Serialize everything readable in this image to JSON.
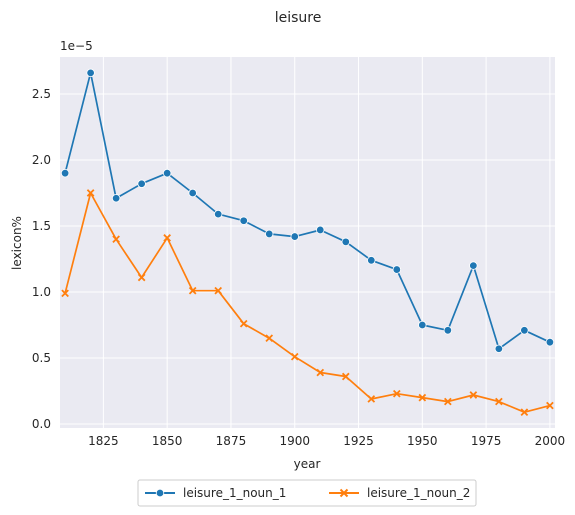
{
  "chart_data": {
    "type": "line",
    "title": "leisure",
    "xlabel": "year",
    "ylabel": "lexicon%",
    "y_offset_label": "1e−5",
    "y_scale": 1e-05,
    "xlim": [
      1808,
      2002
    ],
    "ylim": [
      -0.03,
      2.78
    ],
    "x_ticks": [
      1825,
      1850,
      1875,
      1900,
      1925,
      1950,
      1975,
      2000
    ],
    "y_ticks": [
      0.0,
      0.5,
      1.0,
      1.5,
      2.0,
      2.5
    ],
    "grid": true,
    "legend_position": "below",
    "x": [
      1810,
      1820,
      1830,
      1840,
      1850,
      1860,
      1870,
      1880,
      1890,
      1900,
      1910,
      1920,
      1930,
      1940,
      1950,
      1960,
      1970,
      1980,
      1990,
      2000
    ],
    "series": [
      {
        "name": "leisure_1_noun_1",
        "color": "#1f77b4",
        "marker": "circle",
        "values": [
          1.9,
          2.66,
          1.71,
          1.82,
          1.9,
          1.75,
          1.59,
          1.54,
          1.44,
          1.42,
          1.47,
          1.38,
          1.24,
          1.17,
          0.75,
          0.71,
          1.2,
          0.57,
          0.71,
          0.62
        ]
      },
      {
        "name": "leisure_1_noun_2",
        "color": "#ff7f0e",
        "marker": "x",
        "values": [
          0.99,
          1.75,
          1.4,
          1.11,
          1.41,
          1.01,
          1.01,
          0.76,
          0.65,
          0.51,
          0.39,
          0.36,
          0.19,
          0.23,
          0.2,
          0.17,
          0.22,
          0.17,
          0.09,
          0.14
        ]
      }
    ]
  }
}
